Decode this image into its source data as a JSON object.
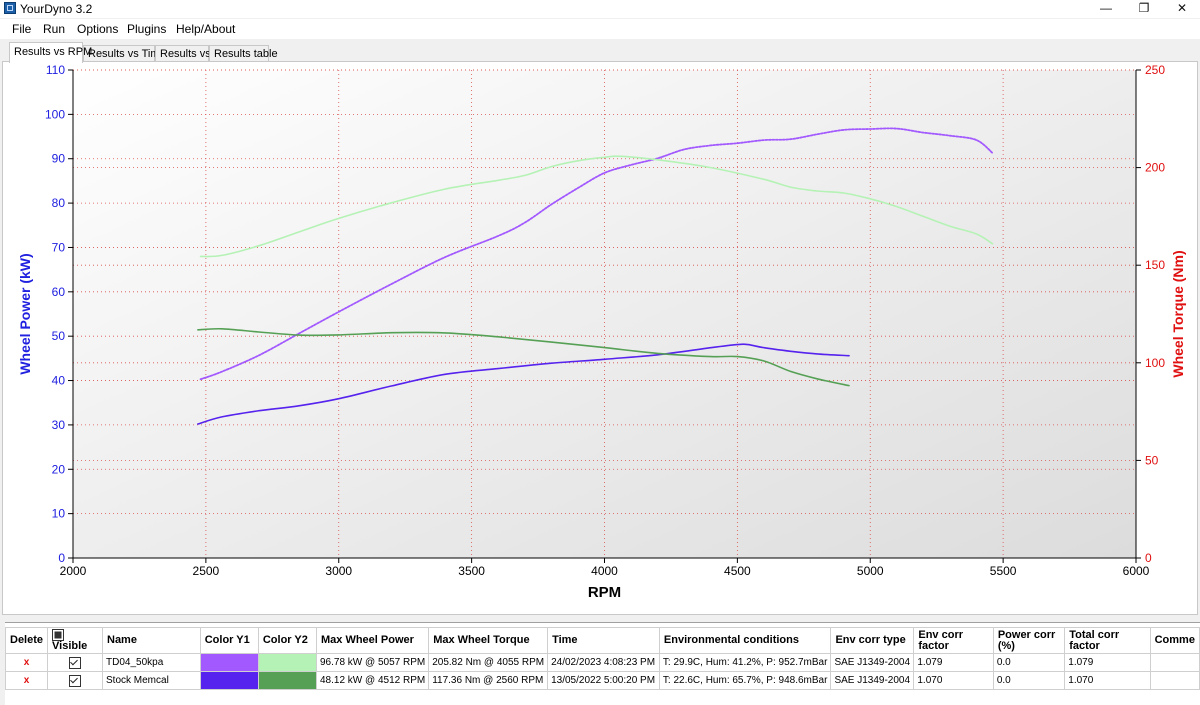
{
  "window": {
    "title": "YourDyno 3.2",
    "minimize": "—",
    "restore": "❐",
    "close": "✕"
  },
  "menu": [
    "File",
    "Run",
    "Options",
    "Plugins",
    "Help/About"
  ],
  "tabs": [
    "Results vs RPM",
    "Results vs Time",
    "Results vs",
    "Results table"
  ],
  "colors": {
    "y1_axis": "#2020e0",
    "y2_axis": "#e01010",
    "grid": "#d95050"
  },
  "chart_data": {
    "type": "line",
    "xlabel": "RPM",
    "y1label": "Wheel Power (kW)",
    "y2label": "Wheel Torque (Nm)",
    "xlim": [
      2000,
      6000
    ],
    "y1lim": [
      0,
      110
    ],
    "y2lim": [
      0,
      250
    ],
    "xticks": [
      2000,
      2500,
      3000,
      3500,
      4000,
      4500,
      5000,
      5500,
      6000
    ],
    "y1ticks": [
      0,
      10,
      20,
      30,
      40,
      50,
      60,
      70,
      80,
      90,
      100,
      110
    ],
    "y2ticks": [
      0,
      50,
      100,
      150,
      200,
      250
    ],
    "series": [
      {
        "axis": "y1",
        "color": "#a259ff",
        "style": "dotted",
        "x": [
          2480,
          2560,
          2700,
          2850,
          3000,
          3200,
          3400,
          3600,
          3700,
          3800,
          3900,
          4000,
          4100,
          4200,
          4300,
          4400,
          4500,
          4600,
          4700,
          4800,
          4900,
          5000,
          5100,
          5200,
          5300,
          5400,
          5460
        ],
        "y": [
          40.3,
          42,
          45.7,
          50.6,
          55.5,
          61.8,
          67.8,
          72.6,
          75.6,
          79.7,
          83.4,
          86.8,
          88.6,
          90.1,
          92.1,
          93,
          93.5,
          94.2,
          94.4,
          95.5,
          96.5,
          96.7,
          96.8,
          95.9,
          95.2,
          94.2,
          91.3
        ]
      },
      {
        "axis": "y2",
        "color": "#b5f2b5",
        "style": "solid",
        "x": [
          2480,
          2560,
          2700,
          2850,
          3000,
          3200,
          3400,
          3600,
          3700,
          3800,
          3900,
          4000,
          4060,
          4200,
          4400,
          4600,
          4700,
          4800,
          4900,
          5000,
          5100,
          5200,
          5300,
          5400,
          5460
        ],
        "y": [
          154.5,
          155,
          160,
          167,
          174,
          182,
          189,
          193.5,
          196,
          200.5,
          203.5,
          205.3,
          205.8,
          204,
          200,
          194,
          190,
          188,
          187,
          184,
          180,
          175,
          170,
          166,
          161
        ]
      },
      {
        "axis": "y1",
        "color": "#5522ee",
        "style": "solid",
        "x": [
          2470,
          2560,
          2700,
          2850,
          3000,
          3200,
          3400,
          3600,
          3800,
          4000,
          4200,
          4400,
          4500,
          4540,
          4600,
          4700,
          4800,
          4920
        ],
        "y": [
          30.2,
          31.8,
          33.2,
          34.3,
          35.9,
          38.8,
          41.4,
          42.7,
          43.9,
          44.8,
          45.8,
          47.4,
          48.1,
          48.1,
          47.4,
          46.6,
          46.0,
          45.6
        ]
      },
      {
        "axis": "y2",
        "color": "#55a055",
        "style": "solid",
        "x": [
          2470,
          2560,
          2700,
          2850,
          3000,
          3200,
          3400,
          3600,
          3800,
          4000,
          4200,
          4400,
          4500,
          4600,
          4700,
          4800,
          4920
        ],
        "y": [
          116.9,
          117.4,
          115.8,
          114.2,
          114.3,
          115.4,
          115.3,
          113.3,
          110.6,
          107.8,
          104.8,
          103.2,
          103.2,
          100.9,
          95.6,
          91.8,
          88.3
        ]
      }
    ]
  },
  "results": {
    "headers": {
      "delete": "Delete",
      "visible": "Visible",
      "name": "Name",
      "color_y1": "Color Y1",
      "color_y2": "Color Y2",
      "max_power": "Max Wheel Power",
      "max_torque": "Max Wheel Torque",
      "time": "Time",
      "env": "Environmental conditions",
      "env_corr_type": "Env corr type",
      "env_corr_factor": "Env corr factor",
      "power_corr": "Power corr (%)",
      "total_corr": "Total corr factor",
      "comment": "Comme"
    },
    "rows": [
      {
        "delete": "x",
        "name": "TD04_50kpa",
        "color_y1": "#a259ff",
        "color_y2": "#b5f2b5",
        "max_power": "96.78 kW @ 5057 RPM",
        "max_torque": "205.82 Nm @ 4055 RPM",
        "time": "24/02/2023 4:08:23 PM",
        "env": "T: 29.9C, Hum: 41.2%, P: 952.7mBar",
        "env_corr_type": "SAE J1349-2004",
        "env_corr_factor": "1.079",
        "power_corr": "0.0",
        "total_corr": "1.079",
        "comment": ""
      },
      {
        "delete": "x",
        "name": "Stock Memcal",
        "color_y1": "#5522ee",
        "color_y2": "#55a055",
        "max_power": "48.12 kW @ 4512 RPM",
        "max_torque": "117.36 Nm @ 2560 RPM",
        "time": "13/05/2022 5:00:20 PM",
        "env": "T: 22.6C, Hum: 65.7%, P: 948.6mBar",
        "env_corr_type": "SAE J1349-2004",
        "env_corr_factor": "1.070",
        "power_corr": "0.0",
        "total_corr": "1.070",
        "comment": ""
      }
    ]
  }
}
